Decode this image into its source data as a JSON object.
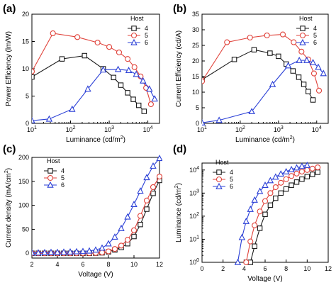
{
  "figure": {
    "colors": {
      "4": "#1a1a1a",
      "5": "#e0433b",
      "6": "#2a3fd6"
    },
    "marker_shapes": {
      "4": "square",
      "5": "circle",
      "6": "triangle"
    }
  },
  "chart_data": [
    {
      "panel": "(a)",
      "type": "line",
      "xscale": "log",
      "xlabel": "Luminance (cd/m2)",
      "ylabel": "Power Efficiency (lm/W)",
      "xlim": [
        10,
        20000
      ],
      "ylim": [
        0,
        20
      ],
      "xticks": [
        10,
        100,
        1000,
        10000
      ],
      "xtick_labels": [
        "10^1",
        "10^2",
        "10^3",
        "10^4"
      ],
      "yticks": [
        0,
        5,
        10,
        15,
        20
      ],
      "legend": {
        "title": "Host",
        "position": "upper-right"
      },
      "series": [
        {
          "name": "4",
          "x": [
            10,
            60,
            230,
            700,
            1300,
            2000,
            3000,
            4200,
            5800,
            8000
          ],
          "y": [
            8.5,
            11.8,
            12.4,
            10.0,
            8.4,
            7.0,
            5.6,
            4.4,
            3.3,
            2.2
          ]
        },
        {
          "name": "5",
          "x": [
            10,
            35,
            150,
            500,
            1000,
            1800,
            3000,
            4500,
            6500,
            9000,
            12000
          ],
          "y": [
            9.5,
            16.5,
            15.8,
            14.8,
            14.0,
            13.0,
            11.8,
            10.3,
            8.6,
            6.5,
            3.5
          ]
        },
        {
          "name": "6",
          "x": [
            10,
            28,
            110,
            280,
            700,
            1700,
            3200,
            5000,
            7500,
            11000,
            15000
          ],
          "y": [
            0.5,
            0.8,
            2.6,
            6.3,
            9.8,
            9.9,
            9.7,
            9.0,
            7.8,
            6.3,
            4.5
          ]
        }
      ]
    },
    {
      "panel": "(b)",
      "type": "line",
      "xscale": "log",
      "xlabel": "Luminance (cd/m2)",
      "ylabel": "Current Efficiency (cd/A)",
      "xlim": [
        10,
        20000
      ],
      "ylim": [
        0,
        35
      ],
      "xticks": [
        10,
        100,
        1000,
        10000
      ],
      "xtick_labels": [
        "10^1",
        "10^2",
        "10^3",
        "10^4"
      ],
      "yticks": [
        0,
        5,
        10,
        15,
        20,
        25,
        30,
        35
      ],
      "legend": {
        "title": "Host",
        "position": "upper-right"
      },
      "series": [
        {
          "name": "4",
          "x": [
            10,
            70,
            230,
            600,
            1000,
            1600,
            2400,
            3400,
            4600,
            6000,
            8000
          ],
          "y": [
            14.0,
            20.5,
            23.6,
            22.5,
            21.5,
            19.0,
            16.8,
            14.8,
            12.5,
            10.2,
            7.5
          ]
        },
        {
          "name": "5",
          "x": [
            10,
            45,
            180,
            500,
            1300,
            2500,
            4000,
            6000,
            8500,
            11500
          ],
          "y": [
            13.5,
            26.0,
            27.5,
            28.2,
            28.5,
            26.0,
            23.0,
            20.5,
            16.0,
            10.5
          ]
        },
        {
          "name": "6",
          "x": [
            10,
            28,
            200,
            700,
            1800,
            3500,
            5500,
            8000,
            11000,
            15000
          ],
          "y": [
            0.2,
            1.0,
            3.8,
            12.5,
            18.5,
            20.2,
            20.2,
            19.5,
            18.0,
            16.0
          ]
        }
      ]
    },
    {
      "panel": "(c)",
      "type": "line",
      "xlabel": "Voltage (V)",
      "ylabel": "Current density (mA/cm2)",
      "xlim": [
        2,
        12
      ],
      "ylim": [
        -10,
        200
      ],
      "xticks": [
        2,
        4,
        6,
        8,
        10,
        12
      ],
      "yticks": [
        0,
        50,
        100,
        150,
        200
      ],
      "legend": {
        "title": "Host",
        "position": "upper-left"
      },
      "series": [
        {
          "name": "4",
          "x": [
            2,
            2.5,
            3,
            3.5,
            4,
            4.5,
            5,
            5.5,
            6,
            6.5,
            7,
            7.5,
            8,
            8.5,
            9,
            9.5,
            10,
            10.5,
            11,
            11.5,
            12
          ],
          "y": [
            0,
            0,
            0,
            0,
            0,
            0,
            0,
            0,
            0,
            0,
            0.3,
            1,
            3,
            7,
            12,
            20,
            35,
            60,
            92,
            125,
            152
          ]
        },
        {
          "name": "5",
          "x": [
            2,
            2.5,
            3,
            3.5,
            4,
            4.5,
            5,
            5.5,
            6,
            6.5,
            7,
            7.5,
            8,
            8.5,
            9,
            9.5,
            10,
            10.5,
            11,
            11.5,
            12
          ],
          "y": [
            0,
            0,
            0,
            0,
            0,
            0,
            0,
            0,
            0,
            0.2,
            0.6,
            1.5,
            4,
            9,
            16,
            28,
            48,
            78,
            110,
            138,
            160
          ]
        },
        {
          "name": "6",
          "x": [
            2,
            2.5,
            3,
            3.5,
            4,
            4.5,
            5,
            5.5,
            6,
            6.5,
            7,
            7.5,
            8,
            8.5,
            9,
            9.5,
            10,
            10.5,
            11,
            11.5,
            12
          ],
          "y": [
            1,
            1,
            1.5,
            2,
            2,
            2.5,
            3,
            3.5,
            4,
            5,
            7,
            11,
            20,
            34,
            52,
            76,
            102,
            130,
            158,
            182,
            198
          ]
        }
      ]
    },
    {
      "panel": "(d)",
      "type": "line",
      "yscale": "log",
      "xlabel": "Voltage (V)",
      "ylabel": "Luminance (cd/m2)",
      "xlim": [
        0,
        12
      ],
      "ylim": [
        1,
        20000
      ],
      "xticks": [
        0,
        2,
        4,
        6,
        8,
        10,
        12
      ],
      "yticks": [
        1,
        10,
        100,
        1000,
        10000
      ],
      "ytick_labels": [
        "10^0",
        "10^1",
        "10^2",
        "10^3",
        "10^4"
      ],
      "legend": {
        "title": "Host",
        "position": "upper-left"
      },
      "series": [
        {
          "name": "4",
          "x": [
            4.6,
            5.0,
            5.5,
            6.0,
            6.5,
            7.0,
            7.5,
            8.0,
            8.5,
            9.0,
            9.5,
            10.0,
            10.5,
            11.0
          ],
          "y": [
            1,
            5,
            30,
            120,
            300,
            600,
            1000,
            1500,
            2200,
            3000,
            4000,
            5200,
            6500,
            8000
          ]
        },
        {
          "name": "5",
          "x": [
            4.2,
            4.6,
            5.0,
            5.5,
            6.0,
            6.5,
            7.0,
            7.5,
            8.0,
            8.5,
            9.0,
            9.5,
            10.0,
            10.5,
            11.0
          ],
          "y": [
            1,
            8,
            40,
            160,
            450,
            1000,
            1800,
            2800,
            4000,
            5500,
            7000,
            8500,
            10000,
            11500,
            13000
          ]
        },
        {
          "name": "6",
          "x": [
            3.4,
            3.8,
            4.2,
            4.6,
            5.0,
            5.5,
            6.0,
            6.5,
            7.0,
            7.5,
            8.0,
            8.5,
            9.0,
            9.5,
            10.0
          ],
          "y": [
            1,
            12,
            60,
            200,
            500,
            1200,
            2200,
            3500,
            5000,
            6800,
            8500,
            10500,
            12500,
            14500,
            16000
          ]
        }
      ]
    }
  ]
}
